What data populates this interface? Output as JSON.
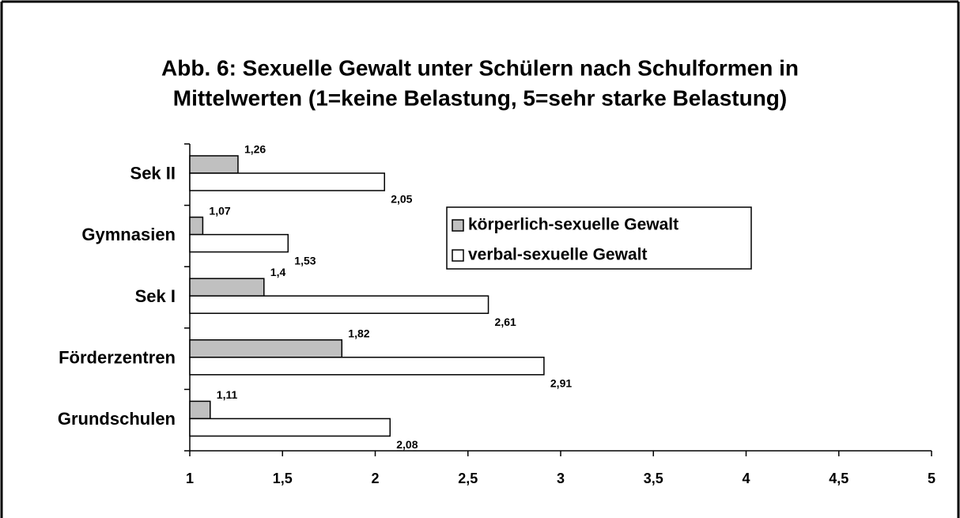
{
  "chart_data": {
    "type": "bar",
    "orientation": "horizontal",
    "title": [
      "Abb. 6: Sexuelle Gewalt unter Schülern nach Schulformen in",
      "Mittelwerten (1=keine Belastung, 5=sehr starke Belastung)"
    ],
    "categories": [
      "Sek II",
      "Gymnasien",
      "Sek I",
      "Förderzentren",
      "Grundschulen"
    ],
    "series": [
      {
        "name": "körperlich-sexuelle Gewalt",
        "color": "#c0c0c0",
        "values": [
          1.26,
          1.07,
          1.4,
          1.82,
          1.11
        ],
        "value_labels": [
          "1,26",
          "1,07",
          "1,4",
          "1,82",
          "1,11"
        ]
      },
      {
        "name": "verbal-sexuelle Gewalt",
        "color": "#ffffff",
        "values": [
          2.05,
          1.53,
          2.61,
          2.91,
          2.08
        ],
        "value_labels": [
          "2,05",
          "1,53",
          "2,61",
          "2,91",
          "2,08"
        ]
      }
    ],
    "xlim": [
      1,
      5
    ],
    "xticks": [
      1,
      {
        "value": 1.5,
        "label": "1,5"
      },
      2,
      {
        "value": 2.5,
        "label": "2,5"
      },
      3,
      {
        "value": 3.5,
        "label": "3,5"
      },
      4,
      {
        "value": 4.5,
        "label": "4,5"
      },
      5
    ],
    "grid": false,
    "legend": "right"
  }
}
